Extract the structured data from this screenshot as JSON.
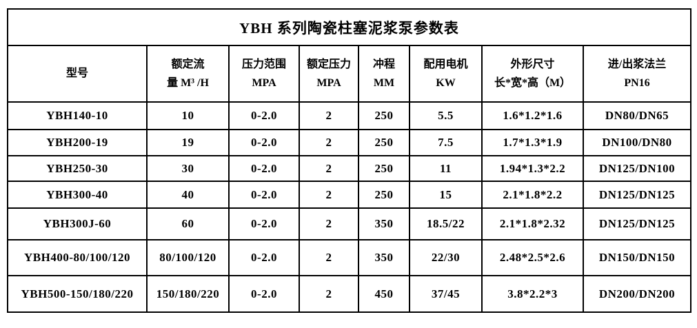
{
  "page": {
    "background": "#ffffff",
    "grid_color": "#000000",
    "text_color": "#000000"
  },
  "table": {
    "title": "YBH 系列陶瓷柱塞泥浆泵参数表",
    "columns": [
      {
        "id": "model",
        "lines": [
          "型号"
        ]
      },
      {
        "id": "rated-flow",
        "lines": [
          "额定流",
          "量 M³ /H"
        ]
      },
      {
        "id": "pressure-range",
        "lines": [
          "压力范围",
          "MPA"
        ]
      },
      {
        "id": "rated-pressure",
        "lines": [
          "额定压力",
          "MPA"
        ]
      },
      {
        "id": "stroke",
        "lines": [
          "冲程",
          "MM"
        ]
      },
      {
        "id": "motor-power",
        "lines": [
          "配用电机",
          "KW"
        ]
      },
      {
        "id": "dimensions",
        "lines": [
          "外形尺寸",
          "长*宽*高（M）"
        ]
      },
      {
        "id": "flange",
        "lines": [
          "进/出浆法兰",
          "PN16"
        ]
      }
    ],
    "rows": [
      [
        "YBH140-10",
        "10",
        "0-2.0",
        "2",
        "250",
        "5.5",
        "1.6*1.2*1.6",
        "DN80/DN65"
      ],
      [
        "YBH200-19",
        "19",
        "0-2.0",
        "2",
        "250",
        "7.5",
        "1.7*1.3*1.9",
        "DN100/DN80"
      ],
      [
        "YBH250-30",
        "30",
        "0-2.0",
        "2",
        "250",
        "11",
        "1.94*1.3*2.2",
        "DN125/DN100"
      ],
      [
        "YBH300-40",
        "40",
        "0-2.0",
        "2",
        "250",
        "15",
        "2.1*1.8*2.2",
        "DN125/DN125"
      ],
      [
        "YBH300J-60",
        "60",
        "0-2.0",
        "2",
        "350",
        "18.5/22",
        "2.1*1.8*2.32",
        "DN125/DN125"
      ],
      [
        "YBH400-80/100/120",
        "80/100/120",
        "0-2.0",
        "2",
        "350",
        "22/30",
        "2.48*2.5*2.6",
        "DN150/DN150"
      ],
      [
        "YBH500-150/180/220",
        "150/180/220",
        "0-2.0",
        "2",
        "450",
        "37/45",
        "3.8*2.2*3",
        "DN200/DN200"
      ]
    ]
  }
}
